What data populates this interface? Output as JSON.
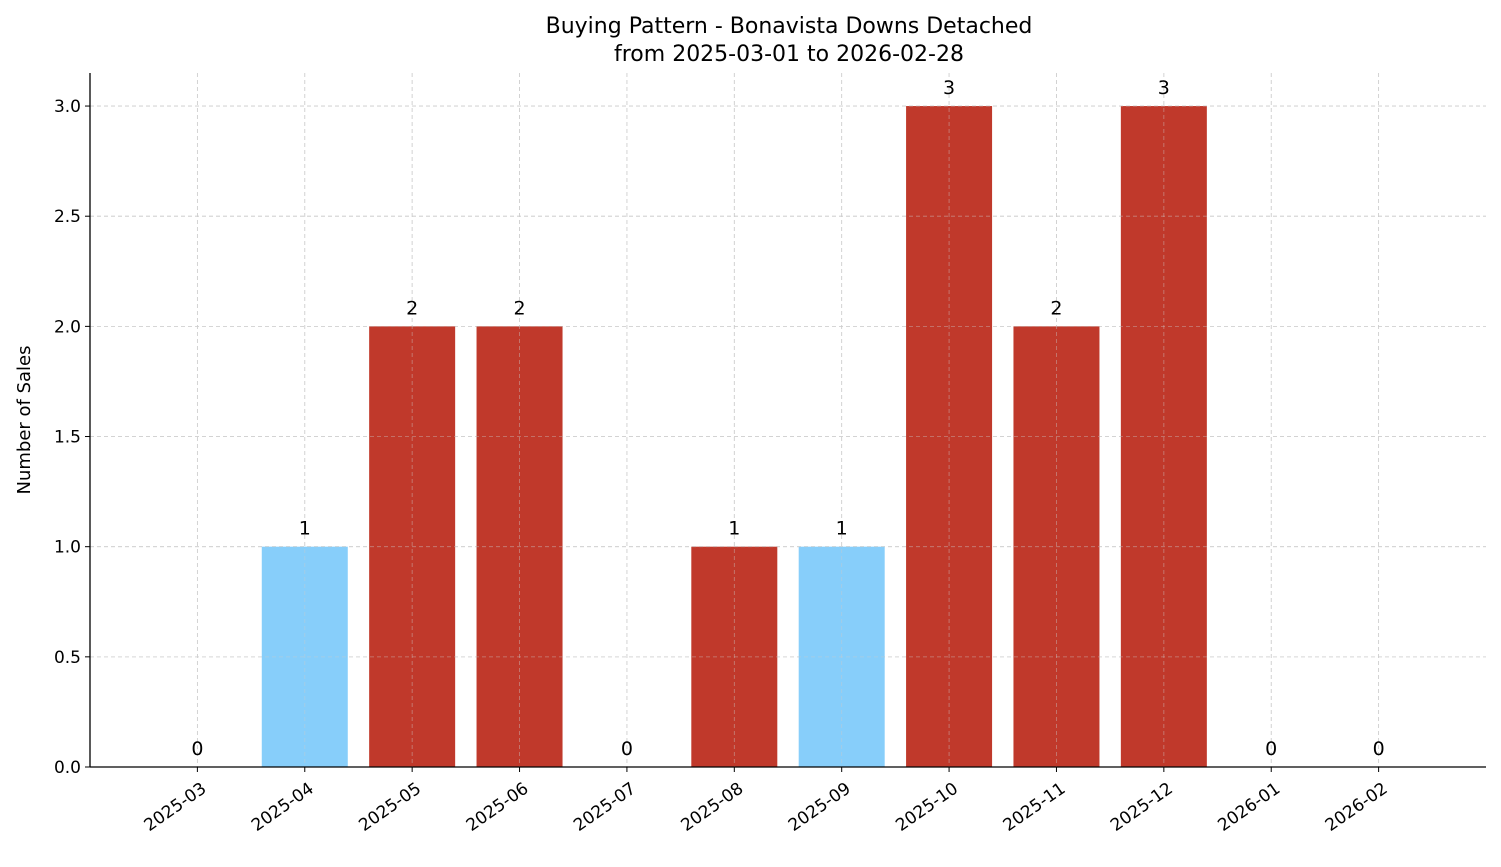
{
  "chart_data": {
    "type": "bar",
    "title": "Buying Pattern - Bonavista Downs Detached",
    "subtitle": "from 2025-03-01 to 2026-02-28",
    "xlabel": "",
    "ylabel": "Number of Sales",
    "categories": [
      "2025-03",
      "2025-04",
      "2025-05",
      "2025-06",
      "2025-07",
      "2025-08",
      "2025-09",
      "2025-10",
      "2025-11",
      "2025-12",
      "2026-01",
      "2026-02"
    ],
    "values": [
      0,
      1,
      2,
      2,
      0,
      1,
      1,
      3,
      2,
      3,
      0,
      0
    ],
    "bar_colors": [
      "#c0392b",
      "#87cefa",
      "#c0392b",
      "#c0392b",
      "#c0392b",
      "#c0392b",
      "#87cefa",
      "#c0392b",
      "#c0392b",
      "#c0392b",
      "#c0392b",
      "#c0392b"
    ],
    "data_labels": [
      "0",
      "1",
      "2",
      "2",
      "0",
      "1",
      "1",
      "3",
      "2",
      "3",
      "0",
      "0"
    ],
    "yticks": [
      "0.0",
      "0.5",
      "1.0",
      "1.5",
      "2.0",
      "2.5",
      "3.0"
    ],
    "ylim": [
      0,
      3.15
    ],
    "grid": true
  }
}
